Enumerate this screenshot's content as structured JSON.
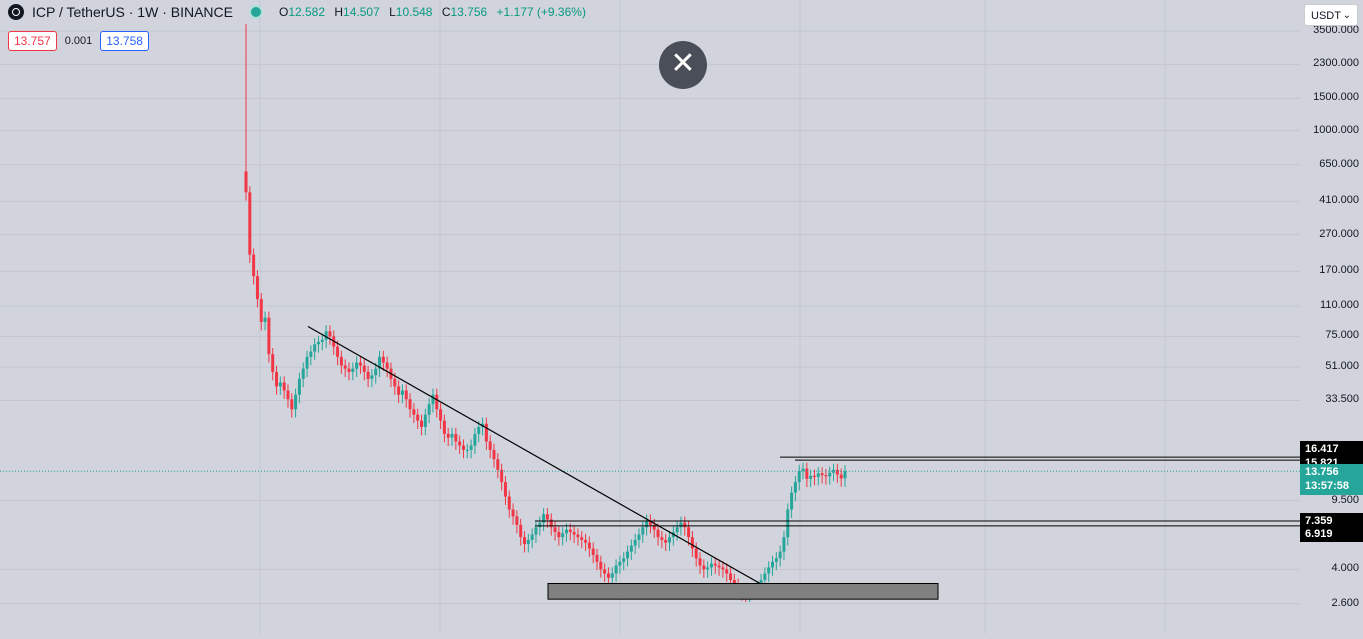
{
  "header": {
    "symbol": "ICP / TetherUS · 1W · BINANCE",
    "ohlc": {
      "open_label": "O",
      "open": "12.582",
      "high_label": "H",
      "high": "14.507",
      "low_label": "L",
      "low": "10.548",
      "close_label": "C",
      "close": "13.756",
      "change": "+1.177 (+9.36%)"
    }
  },
  "trade": {
    "sell_price": "13.757",
    "spread": "0.001",
    "buy_price": "13.758"
  },
  "currency_select": {
    "value": "USDT"
  },
  "close_button": {
    "glyph": "✕"
  },
  "price_axis": {
    "ticks": [
      "3500.000",
      "2300.000",
      "1500.000",
      "1000.000",
      "650.000",
      "410.000",
      "270.000",
      "170.000",
      "110.000",
      "75.000",
      "51.000",
      "33.500",
      "9.500",
      "4.000",
      "2.600"
    ],
    "tags": {
      "level_1": "16.417",
      "level_2": "15.821",
      "current_price": "13.756",
      "countdown": "13:57:58",
      "level_3": "7.359",
      "level_4": "6.919"
    }
  },
  "colors": {
    "up": "#26a69a",
    "down": "#f23645",
    "background": "#d1d4dc",
    "zone": "#808080"
  },
  "chart_data": {
    "type": "candlestick",
    "scale": "log",
    "title": "ICP / TetherUS · 1W · BINANCE",
    "price_levels": [
      16.417,
      15.821,
      7.359,
      6.919
    ],
    "current_price": 13.756,
    "last_candle": {
      "open": 12.582,
      "high": 14.507,
      "low": 10.548,
      "close": 13.756
    },
    "ylim": [
      2.4,
      3500
    ],
    "trendline": {
      "from_price": 85,
      "to_price": 2.8
    },
    "support_zone": {
      "low": 2.75,
      "high": 3.35
    },
    "series_closes": [
      460,
      210,
      160,
      120,
      90,
      95,
      60,
      48,
      40,
      42,
      38,
      34,
      30,
      36,
      44,
      50,
      58,
      62,
      68,
      70,
      72,
      80,
      75,
      66,
      58,
      52,
      50,
      48,
      50,
      54,
      52,
      48,
      44,
      46,
      50,
      58,
      54,
      50,
      44,
      40,
      36,
      38,
      34,
      30,
      28,
      26,
      24,
      28,
      32,
      36,
      30,
      26,
      22,
      21,
      22,
      20,
      19,
      18,
      18,
      19,
      22,
      24,
      25,
      20,
      18,
      16,
      14,
      12,
      10,
      8.5,
      7.8,
      7.0,
      6.0,
      5.5,
      5.8,
      6.2,
      6.8,
      7.2,
      8.0,
      7.5,
      6.8,
      6.4,
      6.0,
      6.3,
      6.6,
      6.4,
      6.2,
      6.0,
      5.8,
      5.6,
      5.2,
      4.8,
      4.4,
      4.0,
      3.8,
      3.6,
      3.8,
      4.2,
      4.4,
      4.6,
      5.0,
      5.4,
      5.8,
      6.2,
      6.8,
      7.4,
      7.0,
      6.6,
      6.0,
      5.8,
      5.6,
      6.0,
      6.4,
      6.8,
      7.2,
      6.8,
      6.0,
      5.2,
      4.6,
      4.2,
      4.0,
      4.1,
      4.3,
      4.2,
      4.1,
      4.0,
      3.8,
      3.5,
      3.3,
      3.1,
      3.0,
      2.95,
      3.05,
      3.1,
      3.2,
      3.5,
      3.8,
      4.1,
      4.4,
      4.6,
      5.0,
      6.0,
      8.5,
      10.5,
      12.0,
      13.8,
      14.2,
      12.5,
      13.0,
      12.8,
      13.4,
      13.1,
      12.9,
      13.5,
      14.0,
      13.2,
      12.582,
      13.756
    ]
  }
}
